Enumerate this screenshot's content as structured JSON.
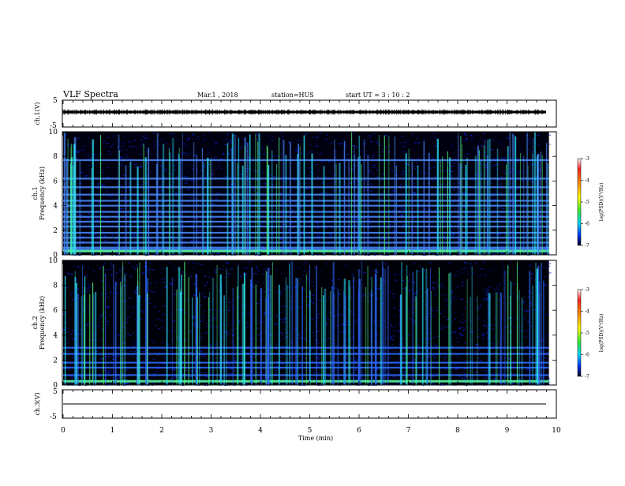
{
  "header": {
    "title": "VLF Spectra",
    "date": "Mar.1  , 2018",
    "station": "station=HUS",
    "start": "start  UT  =   3 : 10 : 2"
  },
  "chart_data": [
    {
      "type": "line",
      "name": "ch.1 waveform",
      "ylabel": "ch.1(V)",
      "ylim": [
        -5,
        5
      ],
      "yticks": [
        "5",
        "-5"
      ],
      "x_range_min": [
        0,
        9.85
      ],
      "values": [
        0
      ]
    },
    {
      "type": "heatmap",
      "name": "ch.1 spectrogram",
      "ylabel_line1": "ch.1",
      "ylabel_line2": "Frequency  (kHz)",
      "ylim": [
        0,
        10
      ],
      "yticks": [
        "0",
        "2",
        "4",
        "6",
        "8",
        "10"
      ],
      "xlim": [
        0,
        10
      ],
      "data_extent_min": 9.85,
      "colorbar": {
        "label": "log(PSD)(V²/Hz)",
        "ticks": [
          "-3",
          "-4",
          "-5",
          "-6",
          "-7"
        ],
        "range": [
          -7,
          -3
        ]
      },
      "lines_khz": [
        0.3,
        0.45,
        0.6,
        1.0,
        1.4,
        1.8,
        2.3,
        2.7,
        3.1,
        3.5,
        4.0,
        4.4,
        4.9,
        5.5,
        6.2,
        7.7
      ],
      "colors": {
        "background": "#000010",
        "noise": "#0a1fd0",
        "line": "#4a8cff",
        "hot": "#2ee6ff",
        "burst": "#55ff88"
      }
    },
    {
      "type": "heatmap",
      "name": "ch.2 spectrogram",
      "ylabel_line1": "ch.2",
      "ylabel_line2": "Frequency  (kHz)",
      "ylim": [
        0,
        10
      ],
      "yticks": [
        "0",
        "2",
        "4",
        "6",
        "8",
        "10"
      ],
      "xlim": [
        0,
        10
      ],
      "data_extent_min": 9.85,
      "colorbar": {
        "label": "log(PSD)(V²/Hz)",
        "ticks": [
          "-3",
          "-4",
          "-5",
          "-6",
          "-7"
        ],
        "range": [
          -7,
          -3
        ]
      },
      "lines_khz": [
        0.3,
        0.8,
        1.4,
        1.8,
        2.5,
        3.0
      ],
      "colors": {
        "background": "#000008",
        "noise": "#0a1fd0",
        "line": "#2f6cff",
        "hot": "#2ee6ff",
        "burst": "#55ff88"
      }
    },
    {
      "type": "line",
      "name": "ch.3 waveform",
      "ylabel": "ch.3(V)",
      "ylim": [
        -5,
        5
      ],
      "yticks": [
        "5",
        "-5"
      ],
      "values": [
        0
      ]
    }
  ],
  "xaxis": {
    "label": "Time  (min)",
    "ticks": [
      "0",
      "1",
      "2",
      "3",
      "4",
      "5",
      "6",
      "7",
      "8",
      "9",
      "10"
    ]
  }
}
